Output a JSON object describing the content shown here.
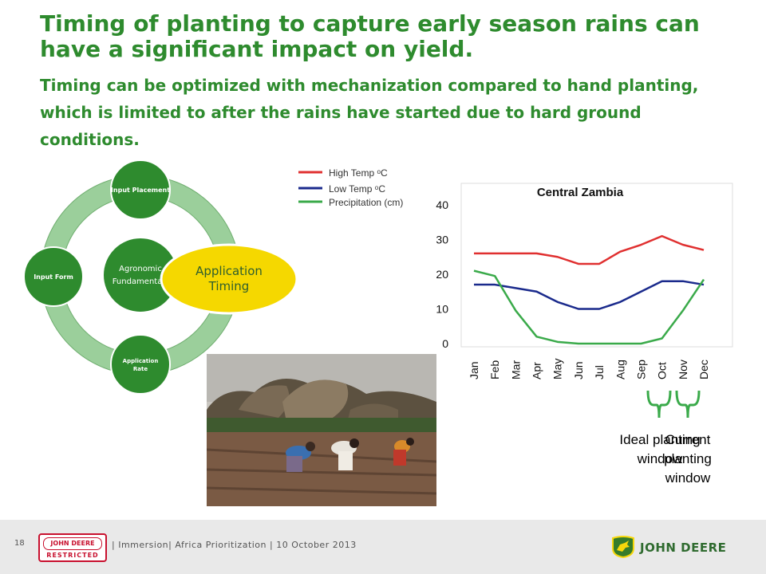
{
  "title": "Timing of planting to capture early season rains can have a significant impact on yield.",
  "subtitle": "Timing can be optimized with mechanization compared to hand planting, which is limited to after the rains have started due to hard ground conditions.",
  "cycle": {
    "center": [
      "Agronomic",
      "Fundamentals"
    ],
    "top": "Input Placement",
    "left": "Input Form",
    "bottom": [
      "Application",
      "Rate"
    ],
    "highlight": [
      "Application",
      "Timing"
    ],
    "colors": {
      "node": "#2e8b2e",
      "ring": "#9bcf9b",
      "highlight": "#f5d800"
    }
  },
  "legend": [
    {
      "label": "High Temp ᵒC",
      "color": "#e03030"
    },
    {
      "label": "Low Temp ᵒC",
      "color": "#1a2a8c"
    },
    {
      "label": "Precipitation (cm)",
      "color": "#3aaa4a"
    }
  ],
  "chart_data": {
    "type": "line",
    "title": "Central Zambia",
    "categories": [
      "Jan",
      "Feb",
      "Mar",
      "Apr",
      "May",
      "Jun",
      "Jul",
      "Aug",
      "Sep",
      "Oct",
      "Nov",
      "Dec"
    ],
    "ylim": [
      0,
      40
    ],
    "yticks": [
      0,
      10,
      20,
      30,
      40
    ],
    "series": [
      {
        "name": "High Temp ᵒC",
        "color": "#e03030",
        "values": [
          26,
          26,
          26,
          26,
          25,
          23,
          23,
          26.5,
          28.5,
          31,
          28.5,
          27
        ]
      },
      {
        "name": "Low Temp ᵒC",
        "color": "#1a2a8c",
        "values": [
          17,
          17,
          16,
          15,
          12,
          10,
          10,
          12,
          15,
          18,
          18,
          17
        ]
      },
      {
        "name": "Precipitation (cm)",
        "color": "#3aaa4a",
        "values": [
          21,
          19.5,
          9.5,
          2,
          0.5,
          0,
          0,
          0,
          0,
          1.5,
          9.5,
          18.5
        ]
      }
    ]
  },
  "windows": {
    "ideal": "Ideal planting window",
    "current": "Current planting window"
  },
  "footer": {
    "page_number": "18",
    "logo_brand": "JOHN DEERE",
    "logo_restricted": "RESTRICTED",
    "text": "| Immersion| Africa Prioritization | 10 October 2013",
    "brand": "JOHN DEERE"
  }
}
